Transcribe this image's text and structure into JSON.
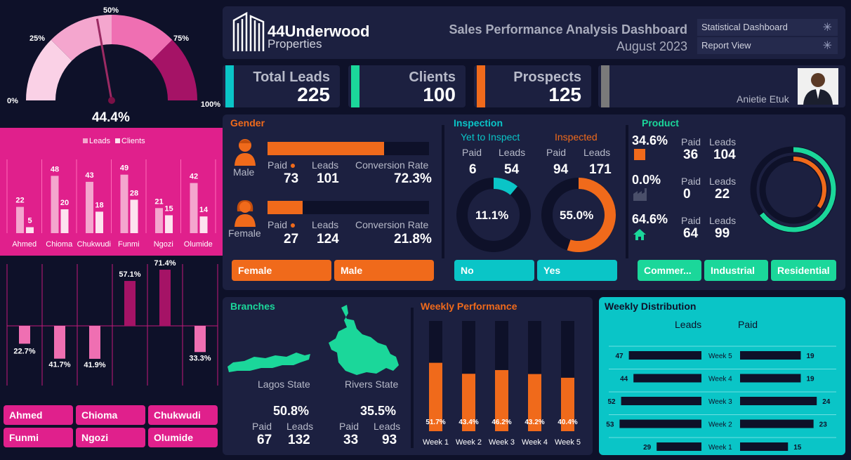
{
  "header": {
    "logo_main": "44Underwood",
    "logo_sub": "Properties",
    "title": "Sales Performance Analysis Dashboard",
    "subtitle": "August 2023",
    "menu": [
      "Statistical Dashboard",
      "Report View"
    ]
  },
  "kpis": {
    "total_leads_label": "Total Leads",
    "total_leads": "225",
    "clients_label": "Clients",
    "clients": "100",
    "prospects_label": "Prospects",
    "prospects": "125",
    "person_name": "Anietie Etuk"
  },
  "gauge": {
    "ticks": [
      "0%",
      "25%",
      "50%",
      "75%",
      "100%"
    ],
    "value_label": "44.4%",
    "value": 0.444
  },
  "agent_chart": {
    "legend": [
      "Leads",
      "Clients"
    ],
    "categories": [
      "Ahmed",
      "Chioma",
      "Chukwudi",
      "Funmi",
      "Ngozi",
      "Olumide"
    ],
    "leads": [
      22,
      48,
      43,
      49,
      21,
      42
    ],
    "clients": [
      5,
      20,
      18,
      28,
      15,
      14
    ]
  },
  "variance_chart": {
    "values": [
      -22.7,
      -41.7,
      -41.9,
      57.1,
      71.4,
      -33.3
    ],
    "labels": [
      "22.7%",
      "41.7%",
      "41.9%",
      "57.1%",
      "71.4%",
      "33.3%"
    ]
  },
  "agent_buttons": [
    "Ahmed",
    "Chioma",
    "Chukwudi",
    "Funmi",
    "Ngozi",
    "Olumide"
  ],
  "gender": {
    "title": "Gender",
    "male_label": "Male",
    "female_label": "Female",
    "paid_label": "Paid",
    "leads_label": "Leads",
    "conv_label": "Conversion Rate",
    "male_paid": "73",
    "male_leads": "101",
    "male_conv": "72.3%",
    "male_fill": 0.723,
    "female_paid": "27",
    "female_leads": "124",
    "female_conv": "21.8%",
    "female_fill": 0.218,
    "buttons": [
      "Female",
      "Male"
    ]
  },
  "inspection": {
    "title": "Inspection",
    "yet_label": "Yet to Inspect",
    "insp_label": "Inspected",
    "paid_label": "Paid",
    "leads_label": "Leads",
    "yet_paid": "6",
    "yet_leads": "54",
    "yet_pct": "11.1%",
    "yet_fill": 0.111,
    "insp_paid": "94",
    "insp_leads": "171",
    "insp_pct": "55.0%",
    "insp_fill": 0.55,
    "buttons": [
      "No",
      "Yes"
    ]
  },
  "product": {
    "title": "Product",
    "paid_label": "Paid",
    "leads_label": "Leads",
    "rows": [
      {
        "pct": "34.6%",
        "paid": "36",
        "leads": "104"
      },
      {
        "pct": "0.0%",
        "paid": "0",
        "leads": "22"
      },
      {
        "pct": "64.6%",
        "paid": "64",
        "leads": "99"
      }
    ],
    "ring_outer": 0.646,
    "ring_inner": 0.346,
    "buttons": [
      "Commer...",
      "Industrial",
      "Residential"
    ]
  },
  "branches": {
    "title": "Branches",
    "lagos_label": "Lagos State",
    "rivers_label": "Rivers State",
    "paid_label": "Paid",
    "leads_label": "Leads",
    "lagos_pct": "50.8%",
    "lagos_paid": "67",
    "lagos_leads": "132",
    "rivers_pct": "35.5%",
    "rivers_paid": "33",
    "rivers_leads": "93"
  },
  "weekly_perf": {
    "title": "Weekly Performance",
    "weeks": [
      "Week 1",
      "Week 2",
      "Week 3",
      "Week 4",
      "Week 5"
    ],
    "values": [
      51.7,
      43.4,
      46.2,
      43.2,
      40.4
    ],
    "labels": [
      "51.7%",
      "43.4%",
      "46.2%",
      "43.2%",
      "40.4%"
    ]
  },
  "weekly_dist": {
    "title": "Weekly Distribution",
    "leads_header": "Leads",
    "paid_header": "Paid",
    "weeks": [
      "Week 5",
      "Week 4",
      "Week 3",
      "Week 2",
      "Week 1"
    ],
    "leads": [
      47,
      44,
      52,
      53,
      29
    ],
    "paid": [
      19,
      19,
      24,
      23,
      15
    ]
  },
  "colors": {
    "pink": "#e0208c",
    "orange": "#f06a1b",
    "teal": "#0ac5c7",
    "green": "#1bd79a",
    "panel": "#1c2040",
    "bg": "#0e1129"
  }
}
